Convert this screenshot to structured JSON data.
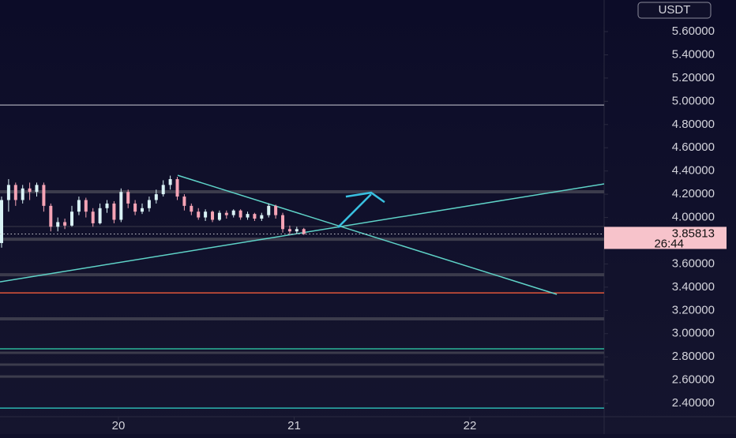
{
  "chart_data": {
    "type": "candlestick",
    "currency": "USDT",
    "x": [
      19.335,
      19.375,
      19.415,
      19.455,
      19.495,
      19.535,
      19.575,
      19.615,
      19.655,
      19.695,
      19.735,
      19.775,
      19.815,
      19.855,
      19.895,
      19.935,
      19.975,
      20.015,
      20.055,
      20.095,
      20.135,
      20.175,
      20.215,
      20.255,
      20.295,
      20.335,
      20.375,
      20.415,
      20.455,
      20.495,
      20.535,
      20.575,
      20.615,
      20.655,
      20.695,
      20.735,
      20.775,
      20.815,
      20.855,
      20.895,
      20.935,
      20.975,
      21.015,
      21.055
    ],
    "open": [
      3.78,
      4.15,
      4.28,
      4.15,
      4.25,
      4.22,
      4.28,
      4.1,
      3.92,
      3.96,
      3.93,
      4.05,
      4.15,
      4.05,
      3.95,
      4.08,
      4.12,
      3.98,
      4.22,
      4.12,
      4.05,
      4.08,
      4.15,
      4.2,
      4.28,
      4.33,
      4.18,
      4.1,
      4.05,
      4.0,
      4.05,
      3.98,
      4.04,
      4.02,
      4.06,
      4.0,
      4.03,
      3.99,
      4.02,
      4.1,
      4.02,
      3.9,
      3.88,
      3.9
    ],
    "high": [
      4.18,
      4.33,
      4.3,
      4.28,
      4.3,
      4.3,
      4.3,
      4.12,
      4.0,
      3.99,
      4.1,
      4.18,
      4.17,
      4.08,
      4.12,
      4.15,
      4.14,
      4.25,
      4.24,
      4.15,
      4.12,
      4.18,
      4.24,
      4.32,
      4.36,
      4.35,
      4.2,
      4.12,
      4.08,
      4.07,
      4.06,
      4.06,
      4.06,
      4.07,
      4.07,
      4.05,
      4.04,
      4.04,
      4.12,
      4.11,
      4.04,
      3.93,
      3.92,
      3.91
    ],
    "low": [
      3.74,
      4.05,
      4.1,
      4.12,
      4.15,
      4.18,
      4.05,
      3.88,
      3.88,
      3.9,
      3.92,
      4.02,
      4.0,
      3.92,
      3.94,
      4.04,
      3.95,
      3.96,
      4.08,
      4.02,
      4.03,
      4.05,
      4.12,
      4.18,
      4.24,
      4.15,
      4.06,
      4.02,
      3.98,
      3.97,
      3.96,
      3.97,
      3.99,
      4.0,
      3.98,
      3.98,
      3.97,
      3.97,
      4.0,
      3.99,
      3.87,
      3.85,
      3.86,
      3.85
    ],
    "close": [
      4.15,
      4.28,
      4.15,
      4.25,
      4.22,
      4.28,
      4.1,
      3.92,
      3.96,
      3.93,
      4.05,
      4.15,
      4.05,
      3.95,
      4.08,
      4.12,
      3.98,
      4.22,
      4.12,
      4.05,
      4.08,
      4.15,
      4.2,
      4.28,
      4.33,
      4.18,
      4.1,
      4.05,
      4.0,
      4.05,
      3.98,
      4.04,
      4.02,
      4.06,
      4.0,
      4.03,
      3.99,
      4.02,
      4.1,
      4.02,
      3.9,
      3.88,
      3.9,
      3.858
    ],
    "up_color": "#d9f2f5",
    "down_color": "#f5a3b5",
    "xlim": [
      19.326,
      22.764
    ],
    "xticks": [
      20,
      21,
      22
    ],
    "ylim": [
      2.285,
      5.872
    ],
    "yticks": [
      {
        "value": 2.4,
        "label": "2.40000"
      },
      {
        "value": 2.6,
        "label": "2.60000"
      },
      {
        "value": 2.8,
        "label": "2.80000"
      },
      {
        "value": 3.0,
        "label": "3.00000"
      },
      {
        "value": 3.2,
        "label": "3.20000"
      },
      {
        "value": 3.4,
        "label": "3.40000"
      },
      {
        "value": 3.6,
        "label": "3.60000"
      },
      {
        "value": 3.8,
        "label": "3.80000"
      },
      {
        "value": 4.0,
        "label": "4.00000"
      },
      {
        "value": 4.2,
        "label": "4.20000"
      },
      {
        "value": 4.4,
        "label": "4.40000"
      },
      {
        "value": 4.6,
        "label": "4.60000"
      },
      {
        "value": 4.8,
        "label": "4.80000"
      },
      {
        "value": 5.0,
        "label": "5.00000"
      },
      {
        "value": 5.2,
        "label": "5.20000"
      },
      {
        "value": 5.4,
        "label": "5.40000"
      },
      {
        "value": 5.6,
        "label": "5.60000"
      }
    ],
    "levels": [
      {
        "value": 4.968,
        "color": "#8c8c9c",
        "width": 1.5
      },
      {
        "value": 4.221,
        "color": "#3c3c4c",
        "width": 4
      },
      {
        "value": 3.922,
        "color": "#3a3a4a",
        "width": 1
      },
      {
        "value": 3.813,
        "color": "#3c3c4c",
        "width": 4
      },
      {
        "value": 3.507,
        "color": "#3c3c4c",
        "width": 4
      },
      {
        "value": 3.351,
        "color": "#e0553a",
        "width": 1.5
      },
      {
        "value": 3.127,
        "color": "#3c3c4c",
        "width": 4
      },
      {
        "value": 2.869,
        "color": "#2bb59a",
        "width": 1.5
      },
      {
        "value": 2.835,
        "color": "#3c3c4c",
        "width": 3
      },
      {
        "value": 2.733,
        "color": "#3c3c4c",
        "width": 3
      },
      {
        "value": 2.631,
        "color": "#3c3c4c",
        "width": 3
      },
      {
        "value": 2.359,
        "color": "#2bb5b0",
        "width": 1.5
      }
    ],
    "trendlines": [
      {
        "x": [
          20.337,
          22.495
        ],
        "y": [
          4.363,
          3.338
        ],
        "color": "#5fd3c8"
      },
      {
        "x": [
          19.326,
          22.764
        ],
        "y": [
          3.446,
          4.289
        ],
        "color": "#5fd3c8"
      }
    ],
    "arrow": {
      "x": [
        21.25,
        21.438
      ],
      "y": [
        3.915,
        4.2
      ],
      "color": "#39c0e0"
    },
    "last_price": 3.85813,
    "countdown": "26:44"
  }
}
